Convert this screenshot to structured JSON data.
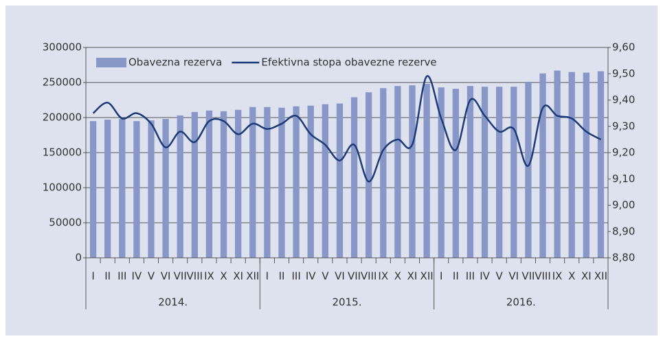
{
  "chart_data": {
    "type": "bar-line",
    "categories": [
      "I",
      "II",
      "III",
      "IV",
      "V",
      "VI",
      "VII",
      "VIII",
      "IX",
      "X",
      "XI",
      "XII",
      "I",
      "II",
      "III",
      "IV",
      "V",
      "VI",
      "VII",
      "VIII",
      "IX",
      "X",
      "XI",
      "XII",
      "I",
      "II",
      "III",
      "IV",
      "V",
      "VI",
      "VII",
      "VIII",
      "IX",
      "X",
      "XI",
      "XII"
    ],
    "years": [
      "2014.",
      "2015.",
      "2016."
    ],
    "series": [
      {
        "name": "Obavezna rezerva",
        "type": "bar",
        "color": "#8797c8",
        "values": [
          195000,
          197000,
          198000,
          195000,
          196000,
          198000,
          203000,
          208000,
          210000,
          209000,
          211000,
          215000,
          215000,
          214000,
          216000,
          217000,
          219000,
          220000,
          229000,
          236000,
          242000,
          245000,
          246000,
          248000,
          243000,
          241000,
          245000,
          244000,
          244000,
          244000,
          251000,
          263000,
          267000,
          265000,
          264000,
          266000
        ]
      },
      {
        "name": "Efektivna stopa obavezne rezerve",
        "type": "line",
        "axis": "y2",
        "color": "#1c3a78",
        "values": [
          9.35,
          9.39,
          9.33,
          9.35,
          9.31,
          9.22,
          9.28,
          9.24,
          9.32,
          9.32,
          9.27,
          9.31,
          9.29,
          9.31,
          9.34,
          9.27,
          9.23,
          9.17,
          9.23,
          9.09,
          9.21,
          9.25,
          9.23,
          9.49,
          9.33,
          9.21,
          9.4,
          9.34,
          9.28,
          9.29,
          9.15,
          9.37,
          9.34,
          9.33,
          9.28,
          9.25
        ]
      }
    ],
    "ylim": [
      0,
      300000
    ],
    "yticks": [
      0,
      50000,
      100000,
      150000,
      200000,
      250000,
      300000
    ],
    "y2lim": [
      8.8,
      9.6
    ],
    "y2ticks": [
      {
        "value": 8.8,
        "label": "8,80"
      },
      {
        "value": 8.9,
        "label": "8,90"
      },
      {
        "value": 9.0,
        "label": "9,00"
      },
      {
        "value": 9.1,
        "label": "9,10"
      },
      {
        "value": 9.2,
        "label": "9,20"
      },
      {
        "value": 9.3,
        "label": "9,30"
      },
      {
        "value": 9.4,
        "label": "9,40"
      },
      {
        "value": 9.5,
        "label": "9,50"
      },
      {
        "value": 9.6,
        "label": "9,60"
      }
    ],
    "grid": true,
    "legend": "top"
  }
}
